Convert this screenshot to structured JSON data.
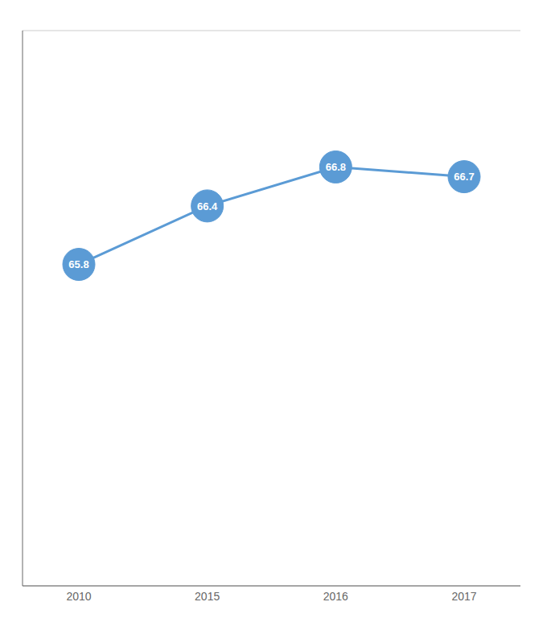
{
  "chart_data": {
    "type": "line",
    "categories": [
      "2010",
      "2015",
      "2016",
      "2017"
    ],
    "values": [
      65.8,
      66.4,
      66.8,
      66.7
    ],
    "color": "#5B9BD5",
    "ylim": [
      62.5,
      68.2
    ],
    "yticks": [
      62.5,
      63,
      63.5,
      64,
      64.5,
      65,
      65.5,
      66,
      66.5,
      67,
      67.5,
      68
    ],
    "grid": true,
    "data_labels": true,
    "tick_labels": "x",
    "marker": "circle"
  }
}
